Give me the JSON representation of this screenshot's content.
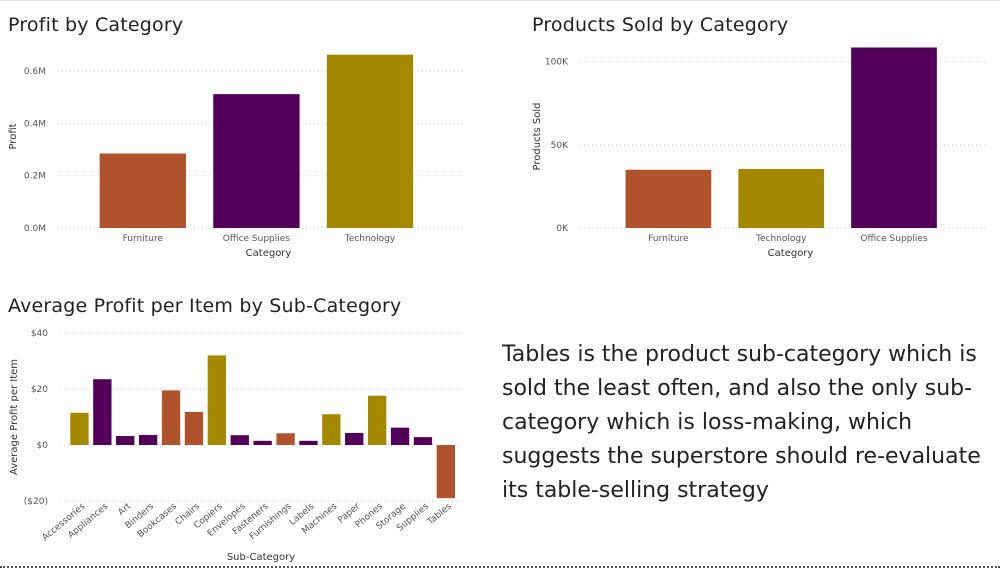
{
  "colors": {
    "furniture": "#b0522c",
    "office_supplies": "#52005a",
    "technology": "#a38800",
    "gridline": "#cfcfcf"
  },
  "chart_data": [
    {
      "id": "profit",
      "type": "bar",
      "title": "Profit by Category",
      "xlabel": "Category",
      "ylabel": "Profit",
      "categories": [
        "Furniture",
        "Office Supplies",
        "Technology"
      ],
      "values": [
        285000,
        512000,
        663000
      ],
      "bar_colors": [
        "#b0522c",
        "#52005a",
        "#a38800"
      ],
      "yticks": [
        0,
        200000,
        400000,
        600000
      ],
      "ytick_labels": [
        "0.0M",
        "0.2M",
        "0.4M",
        "0.6M"
      ],
      "ylim": [
        0,
        700000
      ],
      "grid": true
    },
    {
      "id": "products",
      "type": "bar",
      "title": "Products Sold by Category",
      "xlabel": "Category",
      "ylabel": "Products Sold",
      "categories": [
        "Furniture",
        "Technology",
        "Office Supplies"
      ],
      "values": [
        35000,
        35500,
        108500
      ],
      "bar_colors": [
        "#b0522c",
        "#a38800",
        "#52005a"
      ],
      "yticks": [
        0,
        50000,
        100000
      ],
      "ytick_labels": [
        "0K",
        "50K",
        "100K"
      ],
      "ylim": [
        0,
        110000
      ],
      "grid": true
    },
    {
      "id": "avgprofit",
      "type": "bar",
      "title": "Average Profit per Item by Sub-Category",
      "xlabel": "Sub-Category",
      "ylabel": "Average Profit per Item",
      "categories": [
        "Accessories",
        "Appliances",
        "Art",
        "Binders",
        "Bookcases",
        "Chairs",
        "Copiers",
        "Envelopes",
        "Fasteners",
        "Furnishings",
        "Labels",
        "Machines",
        "Paper",
        "Phones",
        "Storage",
        "Supplies",
        "Tables"
      ],
      "values": [
        11.5,
        23.5,
        3.2,
        3.6,
        19.5,
        11.8,
        32,
        3.5,
        1.5,
        4.2,
        1.5,
        11,
        4.3,
        17.6,
        6.2,
        2.8,
        -19
      ],
      "bar_colors": [
        "#a38800",
        "#52005a",
        "#52005a",
        "#52005a",
        "#b0522c",
        "#b0522c",
        "#a38800",
        "#52005a",
        "#52005a",
        "#b0522c",
        "#52005a",
        "#a38800",
        "#52005a",
        "#a38800",
        "#52005a",
        "#52005a",
        "#b0522c"
      ],
      "yticks": [
        -20,
        0,
        20,
        40
      ],
      "ytick_labels": [
        "($20)",
        "$0",
        "$20",
        "$40"
      ],
      "ylim": [
        -20,
        40
      ],
      "grid": true
    }
  ],
  "narrative": "Tables is the product sub-category which is sold the least often, and also the only sub-category which is loss-making, which suggests the superstore should re-evaluate its table-selling strategy"
}
